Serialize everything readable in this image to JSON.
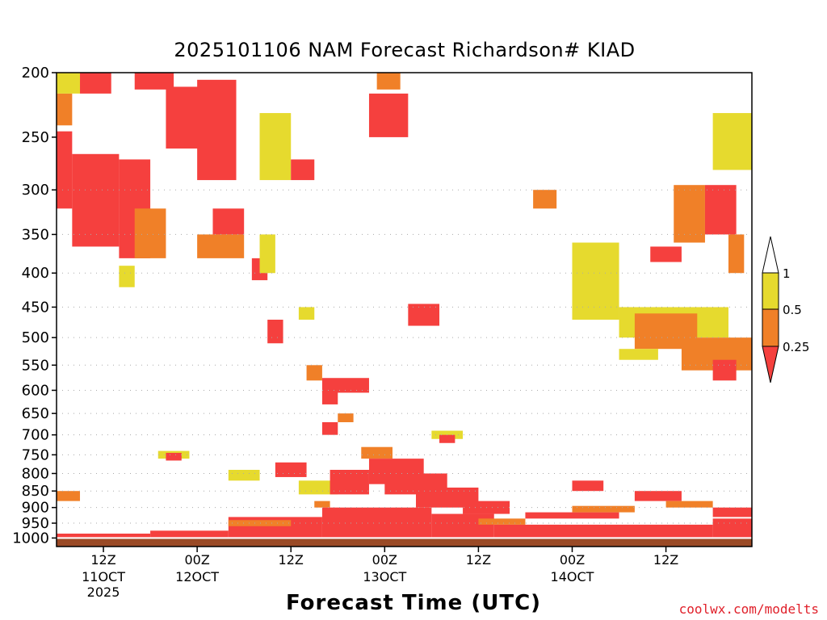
{
  "chart_data": {
    "type": "heatmap",
    "title": "2025101106 NAM Forecast Richardson# KIAD",
    "xlabel": "Forecast Time (UTC)",
    "ylabel": "",
    "y_scale": "log-pressure, inverted",
    "ylim": [
      1030,
      200
    ],
    "y_ticks": [
      200,
      250,
      300,
      350,
      400,
      450,
      500,
      550,
      600,
      650,
      700,
      750,
      800,
      850,
      900,
      950,
      1000
    ],
    "xlim": [
      "2025-10-11T06Z",
      "2025-10-14T23Z"
    ],
    "x_ticks": [
      {
        "t": "2025-10-11T12Z",
        "label": "12Z",
        "sub1": "11OCT",
        "sub2": "2025"
      },
      {
        "t": "2025-10-12T00Z",
        "label": "00Z",
        "sub1": "12OCT",
        "sub2": ""
      },
      {
        "t": "2025-10-12T12Z",
        "label": "12Z",
        "sub1": "",
        "sub2": ""
      },
      {
        "t": "2025-10-13T00Z",
        "label": "00Z",
        "sub1": "13OCT",
        "sub2": ""
      },
      {
        "t": "2025-10-13T12Z",
        "label": "12Z",
        "sub1": "",
        "sub2": ""
      },
      {
        "t": "2025-10-14T00Z",
        "label": "00Z",
        "sub1": "14OCT",
        "sub2": ""
      },
      {
        "t": "2025-10-14T12Z",
        "label": "12Z",
        "sub1": "",
        "sub2": ""
      }
    ],
    "grid": "dotted horizontal lines at 300-950 hPa ticks",
    "legend": {
      "placement": "right",
      "categories": [
        {
          "range": ">1",
          "color": "#ffffff"
        },
        {
          "range": "0.5-1",
          "color": "#e6da2e"
        },
        {
          "range": "0.25-0.5",
          "color": "#f08028"
        },
        {
          "range": "<0.25",
          "color": "#f5403e"
        }
      ],
      "tick_labels": [
        "1",
        "0.5",
        "0.25"
      ]
    },
    "surface_color": "#9a4a26",
    "regions": [
      {
        "class": "lt025",
        "t0": "2025-10-11T06Z",
        "t1": "2025-10-11T08Z",
        "p_top": 245,
        "p_bot": 320
      },
      {
        "class": "lt025",
        "t0": "2025-10-11T08Z",
        "t1": "2025-10-11T14Z",
        "p_top": 265,
        "p_bot": 365
      },
      {
        "class": "lt025",
        "t0": "2025-10-11T14Z",
        "t1": "2025-10-11T18Z",
        "p_top": 270,
        "p_bot": 380
      },
      {
        "class": "c025_05",
        "t0": "2025-10-11T06Z",
        "t1": "2025-10-11T08Z",
        "p_top": 215,
        "p_bot": 240
      },
      {
        "class": "c05_1",
        "t0": "2025-10-11T06Z",
        "t1": "2025-10-11T09Z",
        "p_top": 200,
        "p_bot": 215
      },
      {
        "class": "lt025",
        "t0": "2025-10-11T09Z",
        "t1": "2025-10-11T13Z",
        "p_top": 200,
        "p_bot": 215
      },
      {
        "class": "lt025",
        "t0": "2025-10-11T16Z",
        "t1": "2025-10-11T21Z",
        "p_top": 200,
        "p_bot": 212
      },
      {
        "class": "c025_05",
        "t0": "2025-10-11T16Z",
        "t1": "2025-10-11T20Z",
        "p_top": 320,
        "p_bot": 380
      },
      {
        "class": "lt025",
        "t0": "2025-10-11T20Z",
        "t1": "2025-10-12T02Z",
        "p_top": 210,
        "p_bot": 260
      },
      {
        "class": "lt025",
        "t0": "2025-10-12T00Z",
        "t1": "2025-10-12T05Z",
        "p_top": 205,
        "p_bot": 290
      },
      {
        "class": "lt025",
        "t0": "2025-10-12T02Z",
        "t1": "2025-10-12T06Z",
        "p_top": 320,
        "p_bot": 350
      },
      {
        "class": "c025_05",
        "t0": "2025-10-12T00Z",
        "t1": "2025-10-12T06Z",
        "p_top": 350,
        "p_bot": 380
      },
      {
        "class": "lt025",
        "t0": "2025-10-12T07Z",
        "t1": "2025-10-12T09Z",
        "p_top": 380,
        "p_bot": 410
      },
      {
        "class": "c05_1",
        "t0": "2025-10-12T08Z",
        "t1": "2025-10-12T10Z",
        "p_top": 350,
        "p_bot": 400
      },
      {
        "class": "lt025",
        "t0": "2025-10-12T09Z",
        "t1": "2025-10-12T11Z",
        "p_top": 470,
        "p_bot": 510
      },
      {
        "class": "c05_1",
        "t0": "2025-10-12T08Z",
        "t1": "2025-10-12T12Z",
        "p_top": 230,
        "p_bot": 290
      },
      {
        "class": "lt025",
        "t0": "2025-10-12T12Z",
        "t1": "2025-10-12T15Z",
        "p_top": 270,
        "p_bot": 290
      },
      {
        "class": "c05_1",
        "t0": "2025-10-12T13Z",
        "t1": "2025-10-12T15Z",
        "p_top": 450,
        "p_bot": 470
      },
      {
        "class": "c025_05",
        "t0": "2025-10-12T14Z",
        "t1": "2025-10-12T16Z",
        "p_top": 550,
        "p_bot": 580
      },
      {
        "class": "lt025",
        "t0": "2025-10-12T16Z",
        "t1": "2025-10-12T22Z",
        "p_top": 575,
        "p_bot": 605
      },
      {
        "class": "lt025",
        "t0": "2025-10-12T16Z",
        "t1": "2025-10-12T18Z",
        "p_top": 600,
        "p_bot": 630
      },
      {
        "class": "c025_05",
        "t0": "2025-10-12T18Z",
        "t1": "2025-10-12T20Z",
        "p_top": 650,
        "p_bot": 670
      },
      {
        "class": "lt025",
        "t0": "2025-10-12T16Z",
        "t1": "2025-10-12T18Z",
        "p_top": 670,
        "p_bot": 700
      },
      {
        "class": "lt025",
        "t0": "2025-10-12T22Z",
        "t1": "2025-10-13T03Z",
        "p_top": 215,
        "p_bot": 250
      },
      {
        "class": "c025_05",
        "t0": "2025-10-12T23Z",
        "t1": "2025-10-13T02Z",
        "p_top": 200,
        "p_bot": 212
      },
      {
        "class": "lt025",
        "t0": "2025-10-13T03Z",
        "t1": "2025-10-13T07Z",
        "p_top": 445,
        "p_bot": 480
      },
      {
        "class": "c025_05",
        "t0": "2025-10-13T19Z",
        "t1": "2025-10-13T22Z",
        "p_top": 300,
        "p_bot": 320
      },
      {
        "class": "c05_1",
        "t0": "2025-10-14T00Z",
        "t1": "2025-10-14T06Z",
        "p_top": 360,
        "p_bot": 470
      },
      {
        "class": "c05_1",
        "t0": "2025-10-14T06Z",
        "t1": "2025-10-14T20Z",
        "p_top": 450,
        "p_bot": 500
      },
      {
        "class": "c025_05",
        "t0": "2025-10-14T08Z",
        "t1": "2025-10-14T16Z",
        "p_top": 460,
        "p_bot": 520
      },
      {
        "class": "c025_05",
        "t0": "2025-10-14T14Z",
        "t1": "2025-10-14T23Z",
        "p_top": 500,
        "p_bot": 560
      },
      {
        "class": "lt025",
        "t0": "2025-10-14T18Z",
        "t1": "2025-10-14T21Z",
        "p_top": 540,
        "p_bot": 580
      },
      {
        "class": "c05_1",
        "t0": "2025-10-14T06Z",
        "t1": "2025-10-14T11Z",
        "p_top": 520,
        "p_bot": 540
      },
      {
        "class": "lt025",
        "t0": "2025-10-14T10Z",
        "t1": "2025-10-14T14Z",
        "p_top": 365,
        "p_bot": 385
      },
      {
        "class": "c025_05",
        "t0": "2025-10-14T13Z",
        "t1": "2025-10-14T17Z",
        "p_top": 295,
        "p_bot": 360
      },
      {
        "class": "lt025",
        "t0": "2025-10-14T17Z",
        "t1": "2025-10-14T21Z",
        "p_top": 295,
        "p_bot": 350
      },
      {
        "class": "c05_1",
        "t0": "2025-10-14T18Z",
        "t1": "2025-10-14T23Z",
        "p_top": 230,
        "p_bot": 280
      },
      {
        "class": "c025_05",
        "t0": "2025-10-14T20Z",
        "t1": "2025-10-14T22Z",
        "p_top": 350,
        "p_bot": 400
      },
      {
        "class": "c05_1",
        "t0": "2025-10-11T14Z",
        "t1": "2025-10-11T16Z",
        "p_top": 390,
        "p_bot": 420
      },
      {
        "class": "c025_05",
        "t0": "2025-10-11T06Z",
        "t1": "2025-10-11T09Z",
        "p_top": 850,
        "p_bot": 880
      },
      {
        "class": "c05_1",
        "t0": "2025-10-11T19Z",
        "t1": "2025-10-11T23Z",
        "p_top": 740,
        "p_bot": 760
      },
      {
        "class": "lt025",
        "t0": "2025-10-11T20Z",
        "t1": "2025-10-11T22Z",
        "p_top": 745,
        "p_bot": 765
      },
      {
        "class": "c05_1",
        "t0": "2025-10-12T04Z",
        "t1": "2025-10-12T08Z",
        "p_top": 790,
        "p_bot": 820
      },
      {
        "class": "lt025",
        "t0": "2025-10-12T10Z",
        "t1": "2025-10-12T14Z",
        "p_top": 770,
        "p_bot": 810
      },
      {
        "class": "c05_1",
        "t0": "2025-10-12T13Z",
        "t1": "2025-10-12T18Z",
        "p_top": 820,
        "p_bot": 860
      },
      {
        "class": "lt025",
        "t0": "2025-10-12T17Z",
        "t1": "2025-10-12T22Z",
        "p_top": 790,
        "p_bot": 860
      },
      {
        "class": "c025_05",
        "t0": "2025-10-12T15Z",
        "t1": "2025-10-12T17Z",
        "p_top": 880,
        "p_bot": 900
      },
      {
        "class": "c025_05",
        "t0": "2025-10-12T21Z",
        "t1": "2025-10-13T01Z",
        "p_top": 730,
        "p_bot": 760
      },
      {
        "class": "lt025",
        "t0": "2025-10-12T22Z",
        "t1": "2025-10-13T05Z",
        "p_top": 760,
        "p_bot": 830
      },
      {
        "class": "lt025",
        "t0": "2025-10-13T00Z",
        "t1": "2025-10-13T08Z",
        "p_top": 800,
        "p_bot": 860
      },
      {
        "class": "lt025",
        "t0": "2025-10-13T04Z",
        "t1": "2025-10-13T12Z",
        "p_top": 840,
        "p_bot": 900
      },
      {
        "class": "lt025",
        "t0": "2025-10-13T10Z",
        "t1": "2025-10-13T16Z",
        "p_top": 880,
        "p_bot": 920
      },
      {
        "class": "c05_1",
        "t0": "2025-10-13T06Z",
        "t1": "2025-10-13T10Z",
        "p_top": 690,
        "p_bot": 710
      },
      {
        "class": "lt025",
        "t0": "2025-10-13T07Z",
        "t1": "2025-10-13T09Z",
        "p_top": 700,
        "p_bot": 720
      },
      {
        "class": "lt025",
        "t0": "2025-10-13T18Z",
        "t1": "2025-10-14T06Z",
        "p_top": 915,
        "p_bot": 935
      },
      {
        "class": "c025_05",
        "t0": "2025-10-14T00Z",
        "t1": "2025-10-14T08Z",
        "p_top": 895,
        "p_bot": 915
      },
      {
        "class": "lt025",
        "t0": "2025-10-14T00Z",
        "t1": "2025-10-14T04Z",
        "p_top": 820,
        "p_bot": 850
      },
      {
        "class": "lt025",
        "t0": "2025-10-14T08Z",
        "t1": "2025-10-14T14Z",
        "p_top": 850,
        "p_bot": 880
      },
      {
        "class": "c025_05",
        "t0": "2025-10-14T12Z",
        "t1": "2025-10-14T18Z",
        "p_top": 880,
        "p_bot": 900
      },
      {
        "class": "lt025",
        "t0": "2025-10-14T18Z",
        "t1": "2025-10-14T23Z",
        "p_top": 900,
        "p_bot": 930
      },
      {
        "class": "lt025",
        "t0": "2025-10-11T06Z",
        "t1": "2025-10-11T18Z",
        "p_top": 985,
        "p_bot": 1000
      },
      {
        "class": "lt025",
        "t0": "2025-10-11T18Z",
        "t1": "2025-10-12T04Z",
        "p_top": 975,
        "p_bot": 1000
      },
      {
        "class": "lt025",
        "t0": "2025-10-12T04Z",
        "t1": "2025-10-12T16Z",
        "p_top": 930,
        "p_bot": 1000
      },
      {
        "class": "c025_05",
        "t0": "2025-10-12T04Z",
        "t1": "2025-10-12T12Z",
        "p_top": 940,
        "p_bot": 960
      },
      {
        "class": "lt025",
        "t0": "2025-10-12T16Z",
        "t1": "2025-10-13T06Z",
        "p_top": 900,
        "p_bot": 1000
      },
      {
        "class": "lt025",
        "t0": "2025-10-13T06Z",
        "t1": "2025-10-13T14Z",
        "p_top": 920,
        "p_bot": 1000
      },
      {
        "class": "lt025",
        "t0": "2025-10-13T14Z",
        "t1": "2025-10-14T18Z",
        "p_top": 955,
        "p_bot": 1000
      },
      {
        "class": "c025_05",
        "t0": "2025-10-13T12Z",
        "t1": "2025-10-13T18Z",
        "p_top": 935,
        "p_bot": 955
      },
      {
        "class": "lt025",
        "t0": "2025-10-14T18Z",
        "t1": "2025-10-14T23Z",
        "p_top": 935,
        "p_bot": 1000
      }
    ]
  },
  "credit": "coolwx.com/modelts"
}
